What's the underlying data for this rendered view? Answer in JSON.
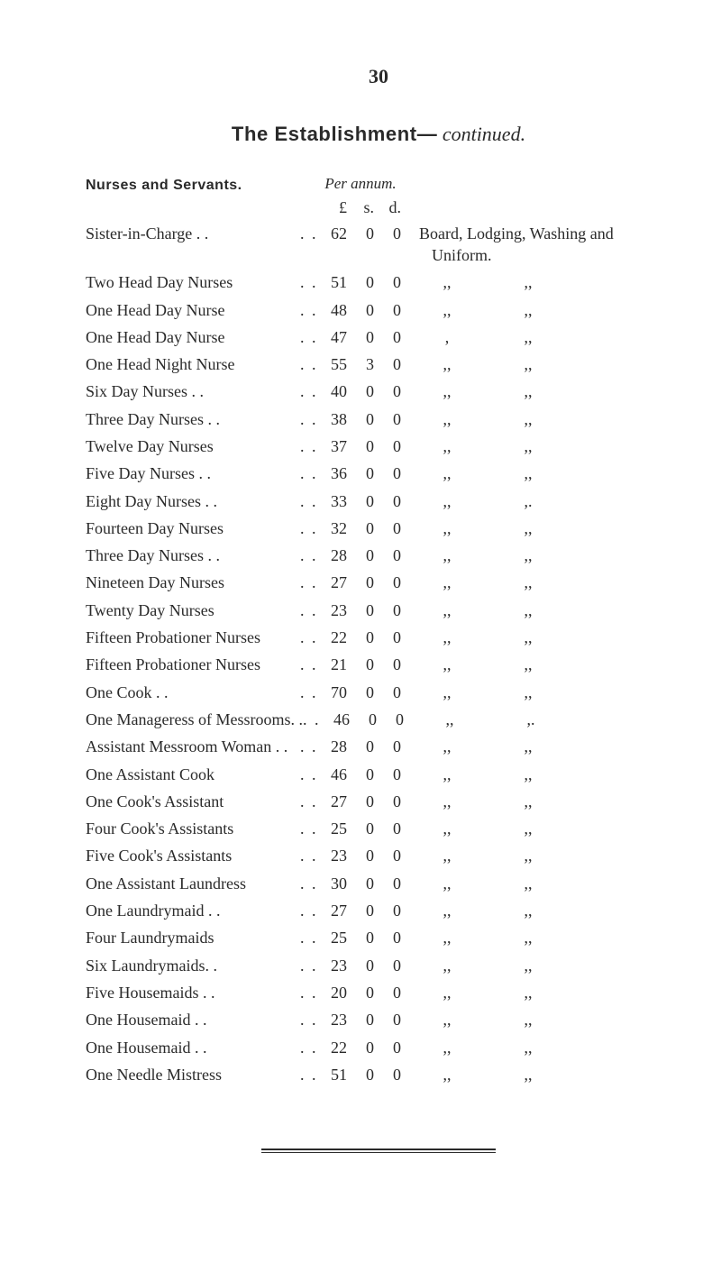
{
  "page_number": "30",
  "title_bold": "The Establishment—",
  "title_italic": " continued.",
  "section_heading": "Nurses and Servants.",
  "per_annum_label": "Per annum.",
  "currency_headers": {
    "l": "£",
    "s": "s.",
    "d": "d."
  },
  "first_note": "Board, Lodging, Washing and Uniform.",
  "ditto": ",,",
  "ditto_alt": ",.",
  "rows": [
    {
      "label": "Sister-in-Charge  . .",
      "l": "62",
      "s": "0",
      "d": "0",
      "first": true
    },
    {
      "label": "Two Head Day Nurses",
      "l": "51",
      "s": "0",
      "d": "0"
    },
    {
      "label": "One Head Day Nurse",
      "l": "48",
      "s": "0",
      "d": "0"
    },
    {
      "label": "One Head Day Nurse",
      "l": "47",
      "s": "0",
      "d": "0",
      "d1": ","
    },
    {
      "label": "One Head Night Nurse",
      "l": "55",
      "s": "3",
      "d": "0"
    },
    {
      "label": "Six Day Nurses    . .",
      "l": "40",
      "s": "0",
      "d": "0"
    },
    {
      "label": "Three Day Nurses . .",
      "l": "38",
      "s": "0",
      "d": "0"
    },
    {
      "label": "Twelve Day Nurses",
      "l": "37",
      "s": "0",
      "d": "0"
    },
    {
      "label": "Five Day Nurses   . .",
      "l": "36",
      "s": "0",
      "d": "0"
    },
    {
      "label": "Eight Day Nurses . .",
      "l": "33",
      "s": "0",
      "d": "0",
      "d2": ",."
    },
    {
      "label": "Fourteen Day Nurses",
      "l": "32",
      "s": "0",
      "d": "0"
    },
    {
      "label": "Three Day Nurses . .",
      "l": "28",
      "s": "0",
      "d": "0"
    },
    {
      "label": "Nineteen Day Nurses",
      "l": "27",
      "s": "0",
      "d": "0"
    },
    {
      "label": "Twenty Day Nurses",
      "l": "23",
      "s": "0",
      "d": "0"
    },
    {
      "label": "Fifteen Probationer Nurses",
      "l": "22",
      "s": "0",
      "d": "0"
    },
    {
      "label": "Fifteen Probationer Nurses",
      "l": "21",
      "s": "0",
      "d": "0"
    },
    {
      "label": "One Cook          . .",
      "l": "70",
      "s": "0",
      "d": "0"
    },
    {
      "label": "One Manageress of Messrooms. .",
      "l": "46",
      "s": "0",
      "d": "0",
      "d2": ",."
    },
    {
      "label": "Assistant Messroom Woman  . .",
      "l": "28",
      "s": "0",
      "d": "0"
    },
    {
      "label": "One Assistant Cook",
      "l": "46",
      "s": "0",
      "d": "0"
    },
    {
      "label": "One Cook's Assistant",
      "l": "27",
      "s": "0",
      "d": "0"
    },
    {
      "label": "Four Cook's Assistants",
      "l": "25",
      "s": "0",
      "d": "0"
    },
    {
      "label": "Five Cook's Assistants",
      "l": "23",
      "s": "0",
      "d": "0"
    },
    {
      "label": "One Assistant Laundress",
      "l": "30",
      "s": "0",
      "d": "0"
    },
    {
      "label": "One Laundrymaid . .",
      "l": "27",
      "s": "0",
      "d": "0"
    },
    {
      "label": "Four Laundrymaids",
      "l": "25",
      "s": "0",
      "d": "0"
    },
    {
      "label": "Six Laundrymaids. .",
      "l": "23",
      "s": "0",
      "d": "0"
    },
    {
      "label": "Five Housemaids  . .",
      "l": "20",
      "s": "0",
      "d": "0"
    },
    {
      "label": "One Housemaid    . .",
      "l": "23",
      "s": "0",
      "d": "0"
    },
    {
      "label": "One Housemaid    . .",
      "l": "22",
      "s": "0",
      "d": "0"
    },
    {
      "label": "One Needle Mistress",
      "l": "51",
      "s": "0",
      "d": "0"
    }
  ],
  "lead_dots": ". ."
}
